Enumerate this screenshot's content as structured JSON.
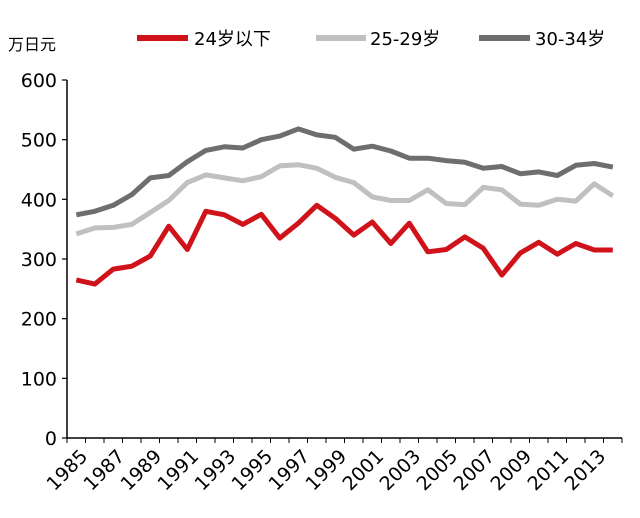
{
  "chart_data": {
    "type": "line",
    "unit_label": "万日元",
    "x": [
      "1985",
      "1986",
      "1987",
      "1988",
      "1989",
      "1990",
      "1991",
      "1992",
      "1993",
      "1994",
      "1995",
      "1996",
      "1997",
      "1998",
      "1999",
      "2000",
      "2001",
      "2002",
      "2003",
      "2004",
      "2005",
      "2006",
      "2007",
      "2008",
      "2009",
      "2010",
      "2011",
      "2012",
      "2013",
      "2014"
    ],
    "x_tick_labels": [
      "1985",
      "1987",
      "1989",
      "1991",
      "1993",
      "1995",
      "1997",
      "1999",
      "2001",
      "2003",
      "2005",
      "2007",
      "2009",
      "2011",
      "2013"
    ],
    "y_ticks": [
      0,
      100,
      200,
      300,
      400,
      500,
      600
    ],
    "ylim": [
      0,
      600
    ],
    "grid": false,
    "legend_position": "top",
    "series": [
      {
        "name": "24岁以下",
        "color": "#d0121b",
        "values": [
          265,
          258,
          283,
          288,
          305,
          355,
          316,
          380,
          374,
          358,
          375,
          335,
          360,
          390,
          368,
          340,
          362,
          326,
          360,
          312,
          316,
          337,
          318,
          273,
          310,
          328,
          308,
          326,
          315,
          315
        ]
      },
      {
        "name": "25-29岁",
        "color": "#c0c0c0",
        "values": [
          342,
          352,
          353,
          358,
          378,
          398,
          428,
          441,
          436,
          431,
          438,
          456,
          458,
          452,
          437,
          428,
          404,
          398,
          398,
          416,
          393,
          391,
          420,
          416,
          392,
          390,
          400,
          397,
          426,
          406
        ]
      },
      {
        "name": "30-34岁",
        "color": "#6e6e6e",
        "values": [
          374,
          380,
          390,
          408,
          436,
          440,
          463,
          482,
          488,
          486,
          500,
          506,
          518,
          508,
          504,
          484,
          489,
          481,
          469,
          469,
          465,
          462,
          452,
          455,
          443,
          446,
          440,
          457,
          460,
          454
        ]
      }
    ]
  }
}
